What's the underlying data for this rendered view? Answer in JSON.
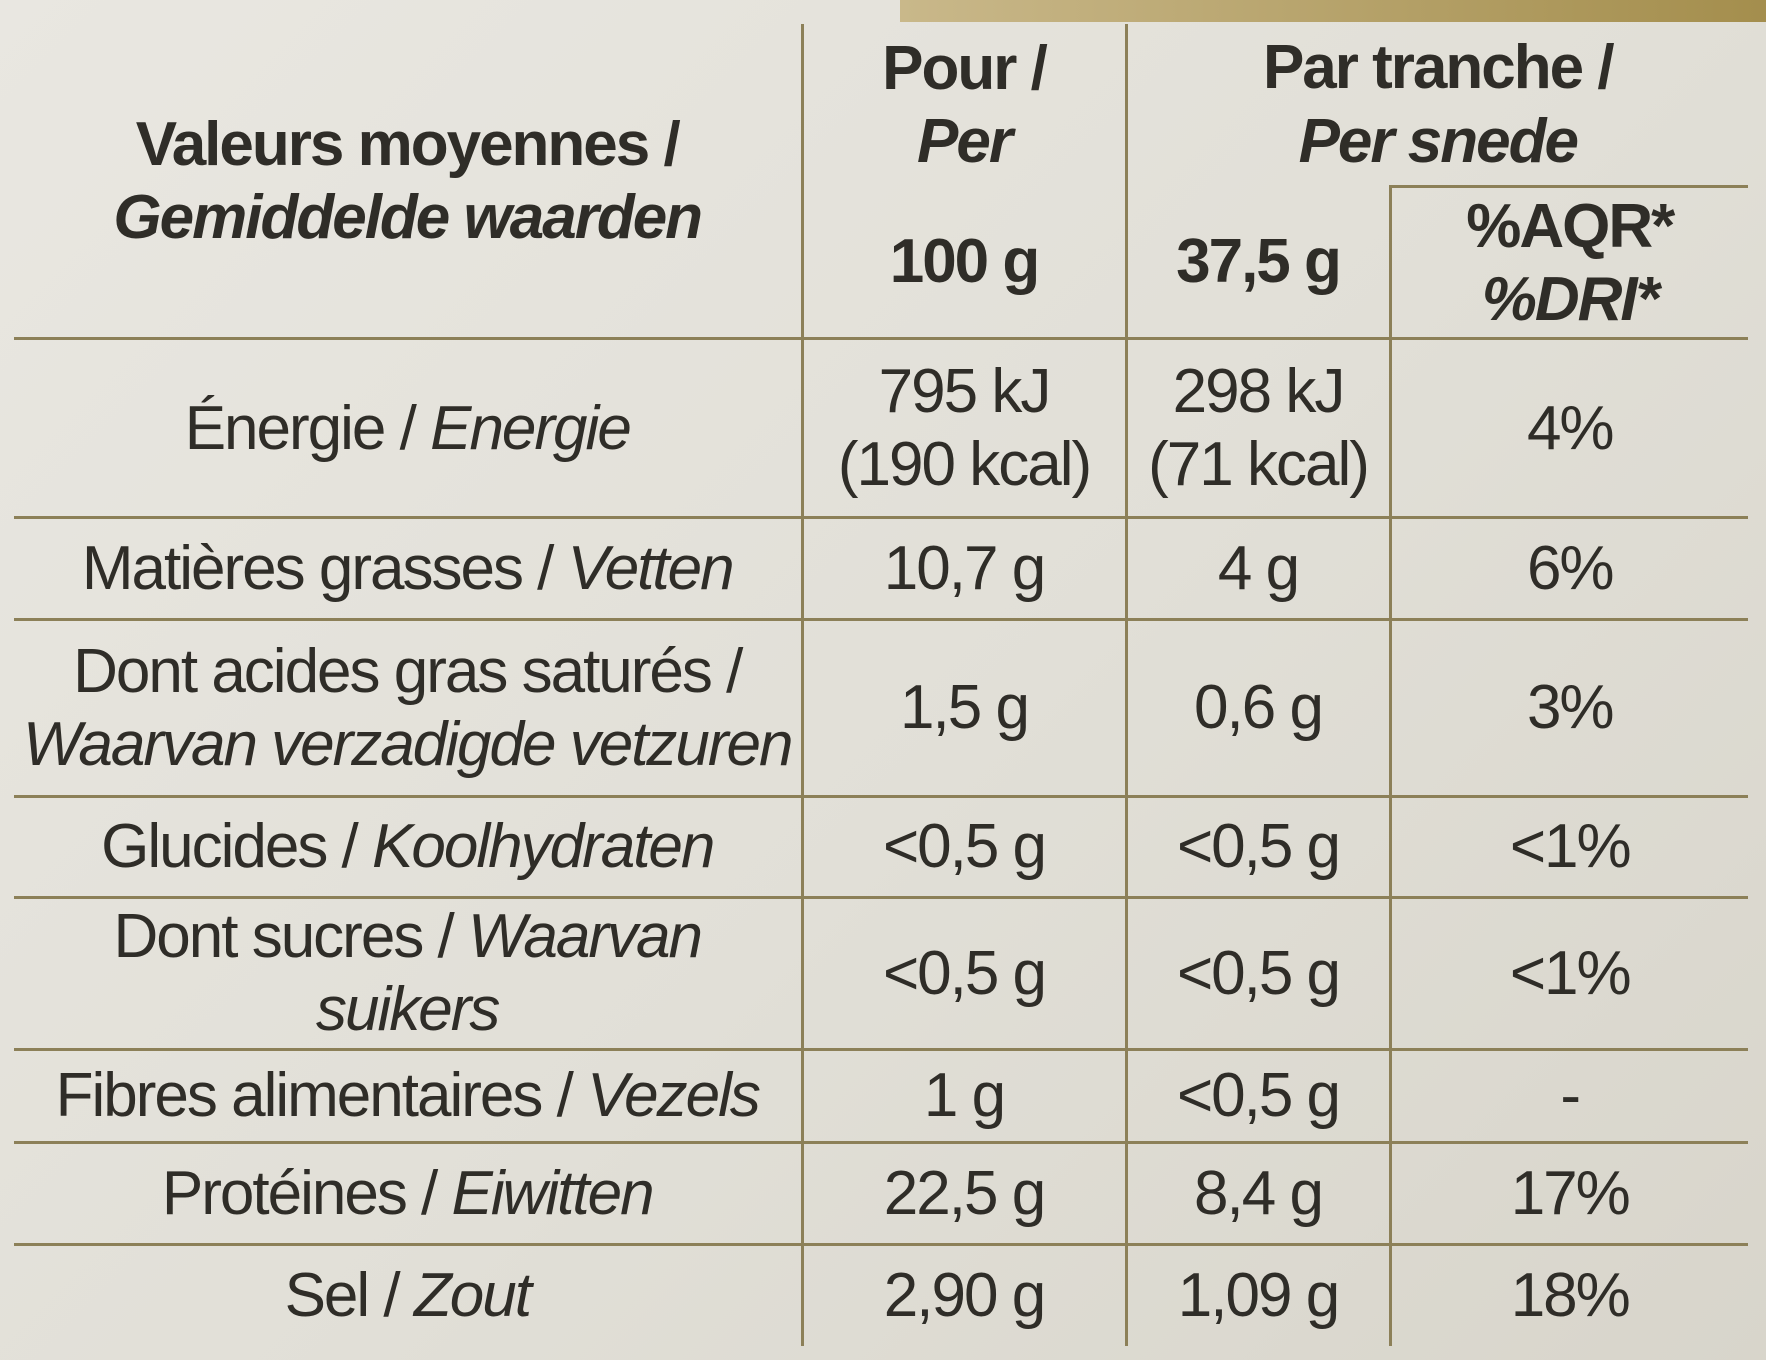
{
  "header": {
    "label_fr": "Valeurs moyennes /",
    "label_nl": "Gemiddelde waarden",
    "col_per100": {
      "line1": "Pour /",
      "line2": "Per",
      "amount": "100 g"
    },
    "col_slice": {
      "line1": "Par tranche /",
      "line2": "Per snede",
      "amount": "37,5 g"
    },
    "col_dri": {
      "line1": "%AQR*",
      "line2": "%DRI*"
    }
  },
  "rows": [
    {
      "name_fr": "Énergie / ",
      "name_nl": "Energie",
      "per100_l1": "795 kJ",
      "per100_l2": "(190 kcal)",
      "slice_l1": "298 kJ",
      "slice_l2": "(71 kcal)",
      "dri": "4%"
    },
    {
      "name_fr": "Matières grasses / ",
      "name_nl": "Vetten",
      "per100": "10,7 g",
      "slice": "4 g",
      "dri": "6%"
    },
    {
      "name_fr": "Dont acides gras saturés /",
      "name_nl": "Waarvan verzadigde vetzuren",
      "per100": "1,5 g",
      "slice": "0,6 g",
      "dri": "3%"
    },
    {
      "name_fr": "Glucides / ",
      "name_nl": "Koolhydraten",
      "per100": "<0,5 g",
      "slice": "<0,5 g",
      "dri": "<1%"
    },
    {
      "name_fr": "Dont sucres / ",
      "name_nl": "Waarvan suikers",
      "per100": "<0,5 g",
      "slice": "<0,5 g",
      "dri": "<1%"
    },
    {
      "name_fr": "Fibres alimentaires / ",
      "name_nl": "Vezels",
      "per100": "1 g",
      "slice": "<0,5 g",
      "dri": "-"
    },
    {
      "name_fr": "Protéines / ",
      "name_nl": "Eiwitten",
      "per100": "22,5 g",
      "slice": "8,4 g",
      "dri": "17%"
    },
    {
      "name_fr": "Sel / ",
      "name_nl": "Zout",
      "per100": "2,90 g",
      "slice": "1,09 g",
      "dri": "18%"
    }
  ]
}
